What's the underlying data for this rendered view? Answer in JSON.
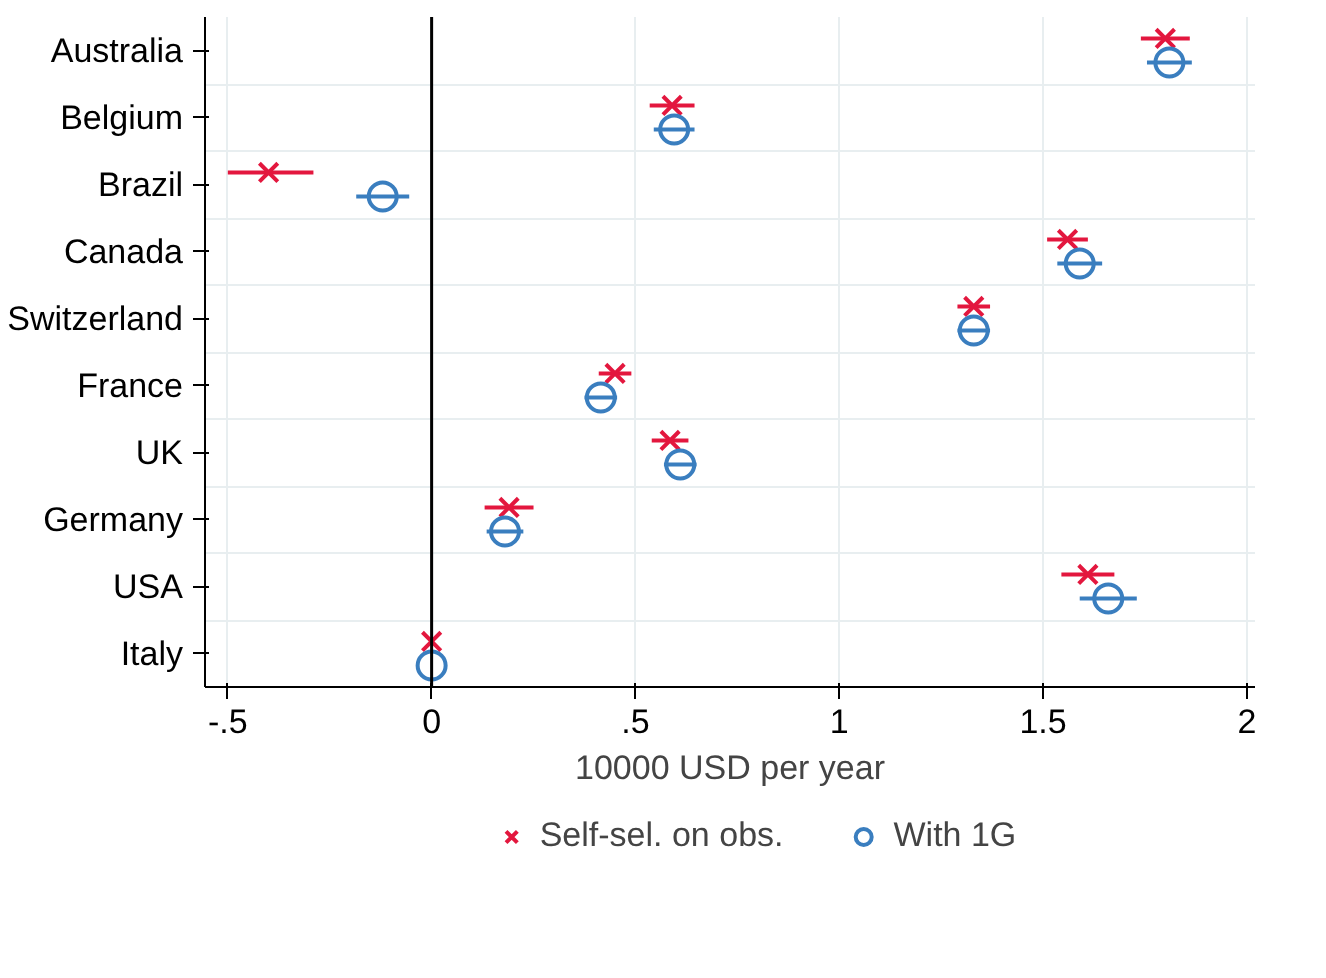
{
  "chart_data": {
    "type": "scatter",
    "orientation": "horizontal",
    "xlabel": "10000 USD per year",
    "categories": [
      "Australia",
      "Belgium",
      "Brazil",
      "Canada",
      "Switzerland",
      "France",
      "UK",
      "Germany",
      "USA",
      "Italy"
    ],
    "series": [
      {
        "name": "Self-sel. on obs.",
        "color": "#e3173e",
        "marker": "cross",
        "values": [
          1.8,
          0.59,
          -0.4,
          1.56,
          1.33,
          0.45,
          0.585,
          0.19,
          1.61,
          0.0
        ],
        "errors": [
          0.06,
          0.055,
          [
            -0.5,
            -0.29
          ],
          0.05,
          0.04,
          0.04,
          0.045,
          0.06,
          0.065,
          null
        ]
      },
      {
        "name": "With 1G",
        "color": "#3a7ebf",
        "marker": "circle",
        "values": [
          1.81,
          0.595,
          -0.12,
          1.59,
          1.33,
          0.415,
          0.61,
          0.18,
          1.66,
          0.0
        ],
        "errors": [
          0.055,
          0.05,
          0.065,
          0.055,
          0.04,
          0.04,
          0.04,
          0.045,
          0.07,
          null
        ]
      }
    ],
    "xlim": [
      -0.556,
      2.02
    ],
    "xticks": [
      {
        "value": -0.5,
        "label": "-.5"
      },
      {
        "value": 0,
        "label": "0"
      },
      {
        "value": 0.5,
        "label": ".5"
      },
      1,
      1.5,
      2
    ],
    "ref_lines": [
      {
        "axis": "x",
        "value": 0,
        "color": "#000000"
      }
    ],
    "grid": true,
    "legend": "bottom"
  }
}
